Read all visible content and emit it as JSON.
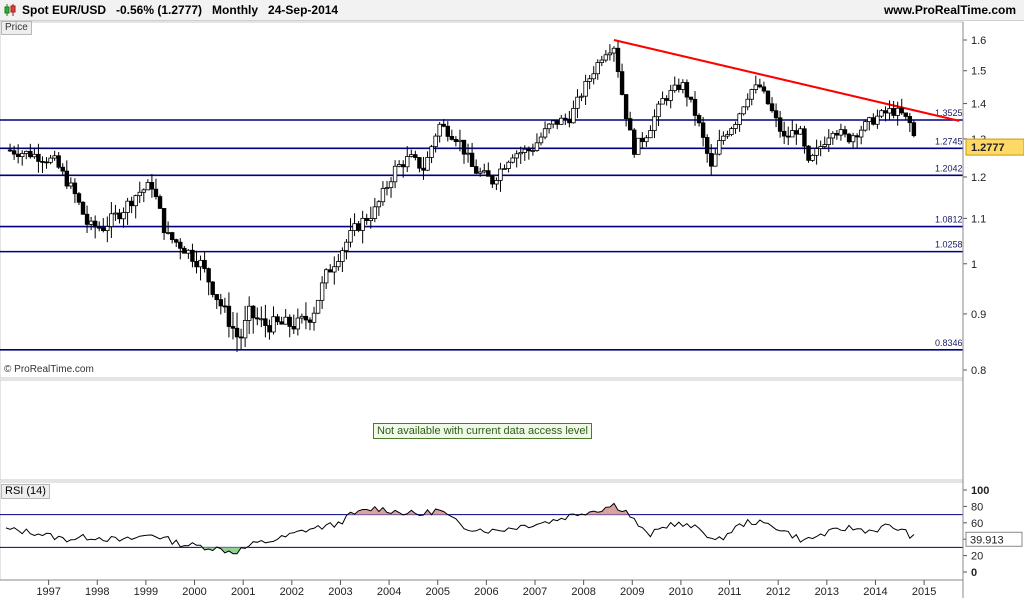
{
  "header": {
    "title": "Spot EUR/USD   -0.56% (1.2777)   Monthly   24-Sep-2014",
    "site": "www.ProRealTime.com",
    "price_tab": "Price",
    "copyright": "© ProRealTime.com"
  },
  "indicator_panel": {
    "message": "Not available with current data access level"
  },
  "rsi_panel": {
    "label": "RSI (14)"
  },
  "colors": {
    "level_lines": "#000080",
    "trendline": "#ff0000",
    "candles": "#000000",
    "price_box": "#ffd966",
    "rsi_over": "#d9a0a0"
  },
  "chart_data": [
    {
      "type": "candlestick",
      "title": "Spot EUR/USD",
      "timeframe": "Monthly",
      "last_price": "1.2777",
      "change": "-0.56%",
      "date": "24-Sep-2014",
      "x_ticks": [
        "1997",
        "1998",
        "1999",
        "2000",
        "2001",
        "2002",
        "2003",
        "2004",
        "2005",
        "2006",
        "2007",
        "2008",
        "2009",
        "2010",
        "2011",
        "2012",
        "2013",
        "2014",
        "2015"
      ],
      "xlim": [
        1996.0,
        2015.8
      ],
      "y_ticks": [
        "1.6",
        "1.5",
        "1.4",
        "1.3",
        "1.2",
        "1.1",
        "1",
        "0.9",
        "0.8"
      ],
      "ylim": [
        0.8,
        1.63
      ],
      "horizontal_levels": [
        {
          "label": "1.3525",
          "value": 1.3525
        },
        {
          "label": "1.2745",
          "value": 1.2745
        },
        {
          "label": "1.2042",
          "value": 1.2042
        },
        {
          "label": "1.0812",
          "value": 1.0812
        },
        {
          "label": "1.0258",
          "value": 1.0258
        },
        {
          "label": "0.8346",
          "value": 0.8346
        }
      ],
      "trendline": {
        "x": [
          2008.5,
          2015.6
        ],
        "y": [
          1.6,
          1.35
        ]
      },
      "price_path": {
        "x": [
          1996.0,
          1996.5,
          1997.0,
          1997.4,
          1997.7,
          1998.0,
          1998.4,
          1998.7,
          1999.0,
          1999.3,
          1999.6,
          2000.0,
          2000.4,
          2000.8,
          2001.0,
          2001.3,
          2001.6,
          2002.0,
          2002.3,
          2002.6,
          2002.9,
          2003.2,
          2003.6,
          2004.0,
          2004.3,
          2004.6,
          2004.9,
          2005.3,
          2005.6,
          2006.0,
          2006.4,
          2006.8,
          2007.2,
          2007.6,
          2007.9,
          2008.3,
          2008.5,
          2008.7,
          2008.9,
          2009.2,
          2009.5,
          2009.9,
          2010.2,
          2010.5,
          2010.7,
          2011.0,
          2011.3,
          2011.5,
          2011.8,
          2012.0,
          2012.3,
          2012.5,
          2012.8,
          2013.0,
          2013.3,
          2013.6,
          2013.9,
          2014.2,
          2014.4,
          2014.6,
          2014.72
        ],
        "y": [
          1.27,
          1.26,
          1.24,
          1.16,
          1.08,
          1.08,
          1.12,
          1.16,
          1.18,
          1.06,
          1.04,
          1.0,
          0.92,
          0.85,
          0.9,
          0.88,
          0.88,
          0.88,
          0.9,
          0.98,
          1.03,
          1.08,
          1.12,
          1.22,
          1.25,
          1.22,
          1.34,
          1.3,
          1.22,
          1.19,
          1.26,
          1.27,
          1.34,
          1.36,
          1.45,
          1.56,
          1.58,
          1.4,
          1.27,
          1.32,
          1.41,
          1.46,
          1.36,
          1.22,
          1.3,
          1.35,
          1.44,
          1.45,
          1.36,
          1.3,
          1.33,
          1.23,
          1.29,
          1.33,
          1.3,
          1.33,
          1.36,
          1.38,
          1.37,
          1.34,
          1.28
        ]
      }
    },
    {
      "type": "line",
      "title": "RSI (14)",
      "y_ticks": [
        "100",
        "80",
        "60",
        "40",
        "20",
        "0"
      ],
      "ylim": [
        0,
        100
      ],
      "bands": [
        70,
        30
      ],
      "last_value": "39.913",
      "x": [
        1996.0,
        1996.6,
        1997.2,
        1997.8,
        1998.4,
        1999.0,
        1999.6,
        2000.2,
        2000.7,
        2001.1,
        2001.6,
        2002.2,
        2002.8,
        2003.1,
        2003.6,
        2004.0,
        2004.5,
        2004.9,
        2005.4,
        2006.0,
        2006.6,
        2007.2,
        2007.8,
        2008.2,
        2008.5,
        2008.75,
        2009.2,
        2009.7,
        2010.3,
        2010.6,
        2011.0,
        2011.3,
        2011.8,
        2012.4,
        2012.8,
        2013.3,
        2013.8,
        2014.1,
        2014.4,
        2014.72
      ],
      "values": [
        52,
        48,
        40,
        43,
        38,
        46,
        34,
        30,
        24,
        34,
        40,
        52,
        58,
        70,
        78,
        74,
        70,
        76,
        55,
        50,
        56,
        62,
        72,
        76,
        82,
        74,
        44,
        60,
        52,
        36,
        54,
        62,
        56,
        38,
        46,
        54,
        50,
        56,
        52,
        39.9
      ]
    }
  ]
}
